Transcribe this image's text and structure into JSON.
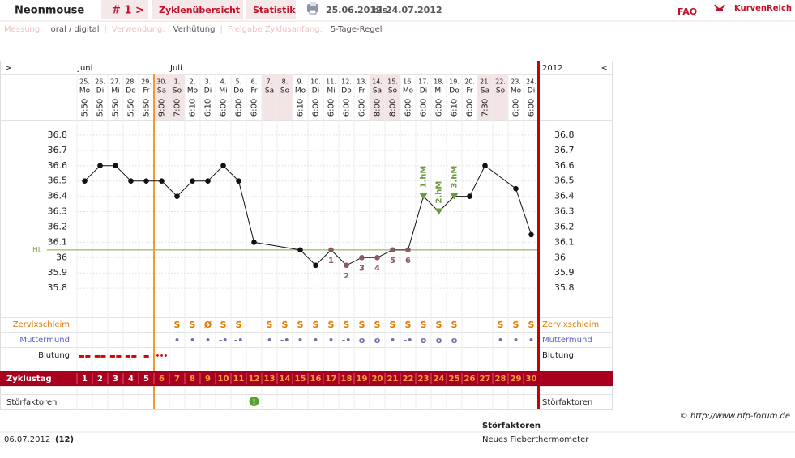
{
  "header": {
    "user": "Neonmouse",
    "cycle": "# 1 >",
    "nav": [
      "Zyklenübersicht",
      "Statistik"
    ],
    "range_from": "25.06.2012",
    "range_sep": "bis",
    "range_to": "24.07.2012",
    "faq": "FAQ",
    "brand": "KurvenReich"
  },
  "info": {
    "separator": "|",
    "items": [
      {
        "label": "Messung:",
        "value": "oral / digital"
      },
      {
        "label": "Verwendung:",
        "value": "Verhütung"
      },
      {
        "label": "Freigabe Zyklusanfang:",
        "value": "5-Tage-Regel"
      }
    ]
  },
  "chart_data": {
    "type": "line",
    "nav_prev": ">",
    "nav_next": "<",
    "year": "2012",
    "month_labels": [
      "Juni",
      null,
      null,
      null,
      null,
      null,
      "Juli",
      null,
      null,
      null,
      null,
      null,
      null,
      null,
      null,
      null,
      null,
      null,
      null,
      null,
      null,
      null,
      null,
      null,
      null,
      null,
      null,
      null,
      null,
      null
    ],
    "day_numbers": [
      "25.",
      "26.",
      "27.",
      "28.",
      "29.",
      "30.",
      "1.",
      "2.",
      "3.",
      "4.",
      "5.",
      "6.",
      "7.",
      "8.",
      "9.",
      "10.",
      "11.",
      "12.",
      "13.",
      "14.",
      "15.",
      "16.",
      "17.",
      "18.",
      "19.",
      "20.",
      "21.",
      "22.",
      "23.",
      "24."
    ],
    "weekdays": [
      "Mo",
      "Di",
      "Mi",
      "Do",
      "Fr",
      "Sa",
      "So",
      "Mo",
      "Di",
      "Mi",
      "Do",
      "Fr",
      "Sa",
      "So",
      "Mo",
      "Di",
      "Mi",
      "Do",
      "Fr",
      "Sa",
      "So",
      "Mo",
      "Di",
      "Mi",
      "Do",
      "Fr",
      "Sa",
      "So",
      "Mo",
      "Di"
    ],
    "times": [
      "5:50",
      "5:50",
      "5:50",
      "5:50",
      "5:50",
      "9:00",
      "7:00",
      "6:10",
      "6:10",
      "6:00",
      "6:00",
      "6:00",
      null,
      null,
      "6:10",
      "6:00",
      "6:00",
      "6:00",
      "6:00",
      "8:00",
      "8:00",
      "6:00",
      "6:00",
      "6:00",
      "6:10",
      "6:00",
      "7:30",
      null,
      "6:00",
      "6:00"
    ],
    "categories": [
      "1",
      "2",
      "3",
      "4",
      "5",
      "6",
      "7",
      "8",
      "9",
      "10",
      "11",
      "12",
      "13",
      "14",
      "15",
      "16",
      "17",
      "18",
      "19",
      "20",
      "21",
      "22",
      "23",
      "24",
      "25",
      "26",
      "27",
      "28",
      "29",
      "30"
    ],
    "values": [
      36.5,
      36.6,
      36.6,
      36.5,
      36.5,
      36.5,
      36.4,
      36.5,
      36.5,
      36.6,
      36.5,
      36.1,
      null,
      null,
      36.05,
      35.95,
      36.05,
      35.95,
      36.0,
      36.0,
      36.05,
      36.05,
      36.4,
      36.3,
      36.4,
      36.4,
      36.6,
      null,
      36.45,
      36.15
    ],
    "point_labels": [
      null,
      null,
      null,
      null,
      null,
      null,
      null,
      null,
      null,
      null,
      null,
      null,
      null,
      null,
      null,
      null,
      "1",
      "2",
      "3",
      "4",
      "5",
      "6",
      null,
      null,
      null,
      null,
      null,
      null,
      null,
      null
    ],
    "peak_labels": [
      null,
      null,
      null,
      null,
      null,
      null,
      null,
      null,
      null,
      null,
      null,
      null,
      null,
      null,
      null,
      null,
      null,
      null,
      null,
      null,
      null,
      null,
      "1.hM",
      "2.hM",
      "3.hM",
      null,
      null,
      null,
      null,
      null
    ],
    "ylim": [
      35.6,
      36.9
    ],
    "yticks": [
      35.8,
      35.9,
      36,
      36.1,
      36.2,
      36.3,
      36.4,
      36.5,
      36.6,
      36.7,
      36.8
    ],
    "coverline": {
      "label": "HL",
      "value": 36.05
    },
    "grid": true,
    "rows": {
      "cervical": {
        "label": "Zervixschleim",
        "values": [
          null,
          null,
          null,
          null,
          null,
          null,
          "S",
          "S",
          "Ø",
          "Ŝ",
          "Ŝ",
          null,
          "Ŝ",
          "Ŝ",
          "Ŝ",
          "Ŝ",
          "Ŝ",
          "Ŝ",
          "Ŝ",
          "Ŝ",
          "Ŝ",
          "Ŝ",
          "Ŝ",
          "Ŝ",
          "Ŝ",
          null,
          null,
          "Ŝ",
          "Ŝ",
          "Ŝ"
        ]
      },
      "cervix": {
        "label": "Muttermund",
        "values": [
          null,
          null,
          null,
          null,
          null,
          null,
          "•",
          "•",
          "•",
          "-•",
          "-•",
          null,
          "•",
          "-•",
          "•",
          "•",
          "•",
          "-•",
          "o",
          "o",
          "•",
          "-•",
          "ō",
          "o",
          "ō",
          null,
          null,
          "•",
          "•",
          "•"
        ]
      },
      "bleeding": {
        "label": "Blutung",
        "values": [
          "▬▬",
          "▬▬",
          "▬▬",
          "▬▬",
          "▬",
          "•••",
          null,
          null,
          null,
          null,
          null,
          null,
          null,
          null,
          null,
          null,
          null,
          null,
          null,
          null,
          null,
          null,
          null,
          null,
          null,
          null,
          null,
          null,
          null,
          null
        ]
      },
      "cycle_day_label": "Zyklustag",
      "disturbance": {
        "label": "Störfaktoren",
        "values": [
          null,
          null,
          null,
          null,
          null,
          null,
          null,
          null,
          null,
          null,
          null,
          "!",
          null,
          null,
          null,
          null,
          null,
          null,
          null,
          null,
          null,
          null,
          null,
          null,
          null,
          null,
          null,
          null,
          null,
          null
        ]
      }
    }
  },
  "footer": {
    "copyright": "© http://www.nfp-forum.de",
    "date": "06.07.2012",
    "day": "(12)",
    "disturbance_title": "Störfaktoren",
    "disturbance_text": "Neues Fieberthermometer"
  }
}
